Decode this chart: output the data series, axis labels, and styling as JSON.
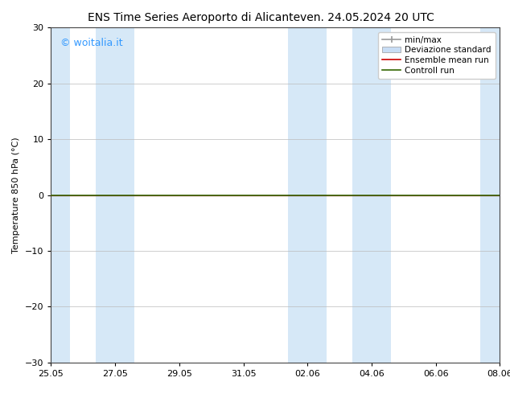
{
  "title_left": "ENS Time Series Aeroporto di Alicante",
  "title_right": "ven. 24.05.2024 20 UTC",
  "ylabel": "Temperature 850 hPa (°C)",
  "watermark": "© woitalia.it",
  "watermark_color": "#3399ff",
  "ylim": [
    -30,
    30
  ],
  "yticks": [
    -30,
    -20,
    -10,
    0,
    10,
    20,
    30
  ],
  "background_color": "#ffffff",
  "plot_bg_color": "#ffffff",
  "band_color": "#d6e8f7",
  "x_total": 14,
  "xtick_labels": [
    "25.05",
    "27.05",
    "29.05",
    "31.05",
    "02.06",
    "04.06",
    "06.06",
    "08.06"
  ],
  "xtick_positions": [
    0,
    2,
    4,
    6,
    8,
    10,
    12,
    14
  ],
  "blue_bands": [
    [
      0,
      0.6
    ],
    [
      1.4,
      2.6
    ],
    [
      7.4,
      8.6
    ],
    [
      9.4,
      10.6
    ],
    [
      13.4,
      14
    ]
  ],
  "line_y": 0.0,
  "line_color_control": "#336600",
  "line_color_ensemble": "#cc0000",
  "line_color_zero": "#333333",
  "font_size_title": 10,
  "font_size_axis": 8,
  "font_size_legend": 7.5,
  "font_size_watermark": 9,
  "tick_font_size": 8
}
